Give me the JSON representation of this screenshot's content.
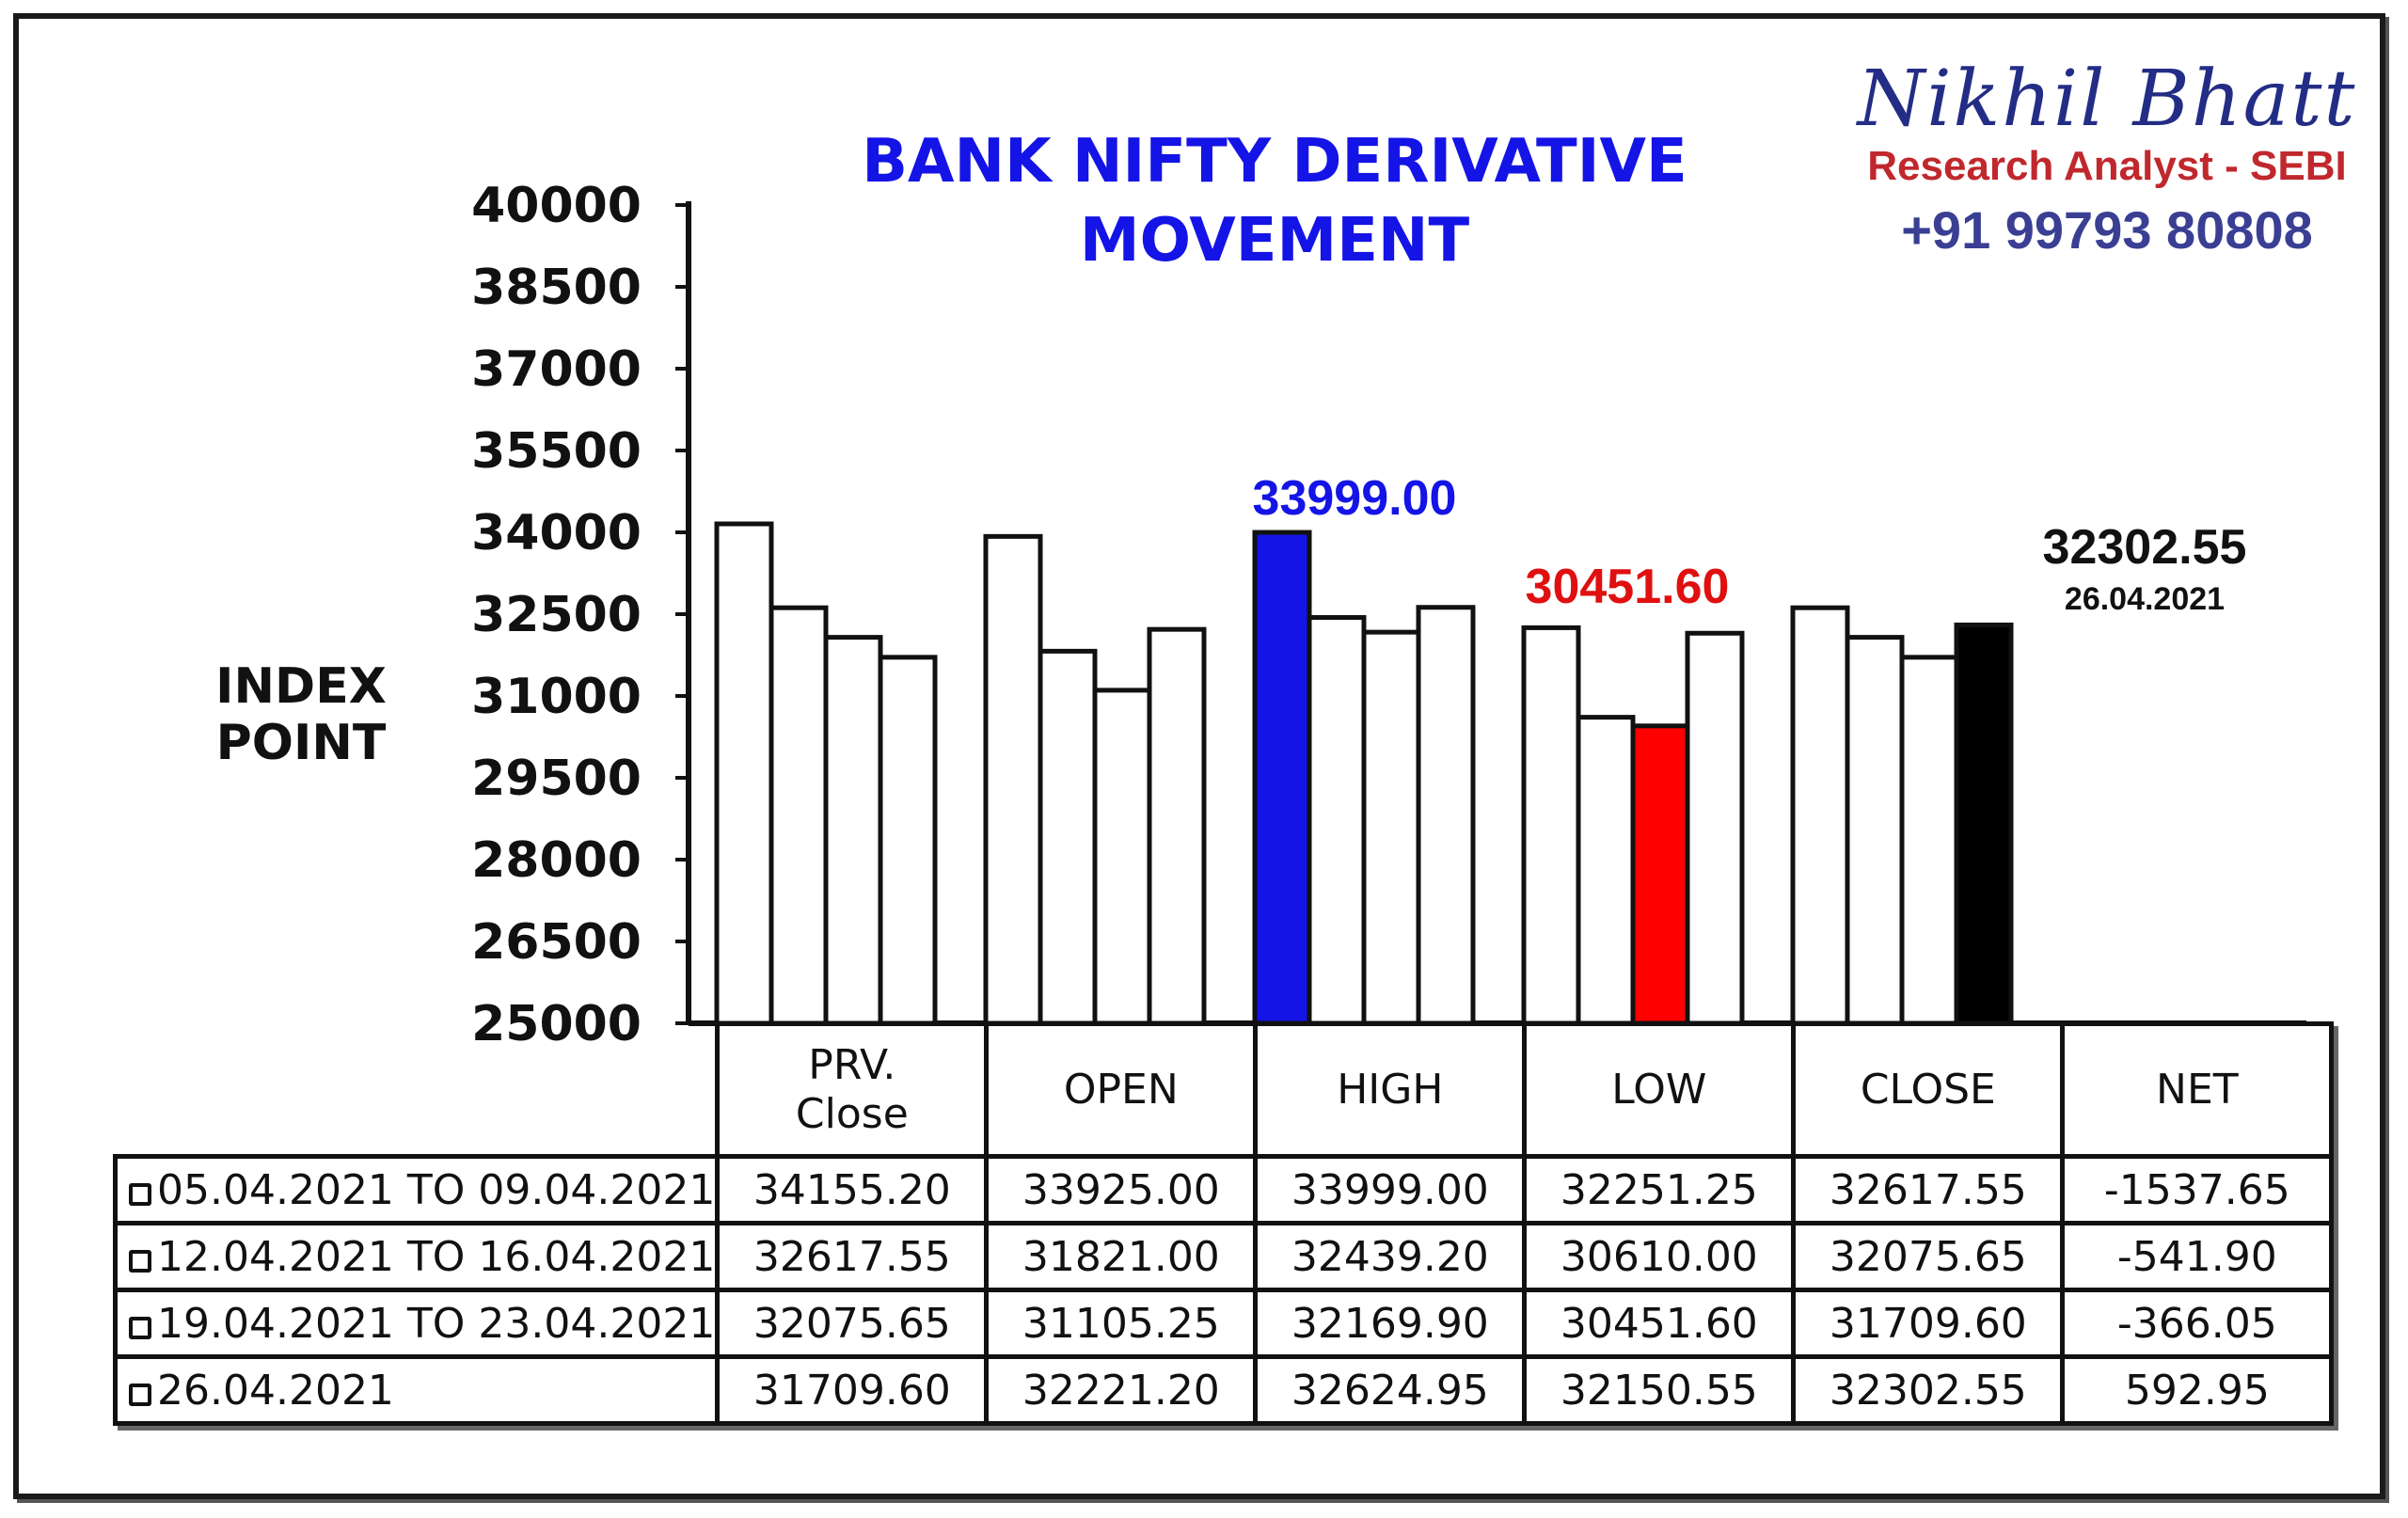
{
  "title_line1": "BANK NIFTY DERIVATIVE",
  "title_line2": "MOVEMENT",
  "brand": {
    "name": "Nikhil Bhatt",
    "role": "Research Analyst - SEBI",
    "phone": "+91 99793 80808"
  },
  "annotations": {
    "high": "33999.00",
    "low": "30451.60",
    "close": "32302.55",
    "close_date": "26.04.2021"
  },
  "colors": {
    "title": "#1414e6",
    "high_bar": "#1414e6",
    "low_bar": "#ff0000",
    "close_bar": "#000000",
    "default_bar": "#ffffff"
  },
  "chart_data": {
    "type": "bar",
    "title": "BANK NIFTY DERIVATIVE MOVEMENT",
    "ylabel": "INDEX POINT",
    "xlabel": "",
    "ylim": [
      25000,
      40000
    ],
    "yticks": [
      25000,
      26500,
      28000,
      29500,
      31000,
      32500,
      34000,
      35500,
      37000,
      38500,
      40000
    ],
    "categories": [
      "PRV. Close",
      "OPEN",
      "HIGH",
      "LOW",
      "CLOSE"
    ],
    "series": [
      {
        "name": "05.04.2021 TO 09.04.2021",
        "values": [
          34155.2,
          33925.0,
          33999.0,
          32251.25,
          32617.55
        ]
      },
      {
        "name": "12.04.2021 TO 16.04.2021",
        "values": [
          32617.55,
          31821.0,
          32439.2,
          30610.0,
          32075.65
        ]
      },
      {
        "name": "19.04.2021 TO 23.04.2021",
        "values": [
          32075.65,
          31105.25,
          32169.9,
          30451.6,
          31709.6
        ]
      },
      {
        "name": "26.04.2021",
        "values": [
          31709.6,
          32221.2,
          32624.95,
          32150.55,
          32302.55
        ]
      }
    ],
    "highlights": [
      {
        "category": "HIGH",
        "series": "05.04.2021 TO 09.04.2021",
        "color": "#1414e6"
      },
      {
        "category": "LOW",
        "series": "19.04.2021 TO 23.04.2021",
        "color": "#ff0000"
      },
      {
        "category": "CLOSE",
        "series": "26.04.2021",
        "color": "#000000"
      }
    ],
    "grid": false,
    "legend": "table-below"
  },
  "table": {
    "headers": [
      "PRV.\nClose",
      "OPEN",
      "HIGH",
      "LOW",
      "CLOSE",
      "NET"
    ],
    "rows": [
      {
        "label": "05.04.2021 TO 09.04.2021",
        "cells": [
          "34155.20",
          "33925.00",
          "33999.00",
          "32251.25",
          "32617.55",
          "-1537.65"
        ]
      },
      {
        "label": "12.04.2021 TO 16.04.2021",
        "cells": [
          "32617.55",
          "31821.00",
          "32439.20",
          "30610.00",
          "32075.65",
          "-541.90"
        ]
      },
      {
        "label": "19.04.2021 TO 23.04.2021",
        "cells": [
          "32075.65",
          "31105.25",
          "32169.90",
          "30451.60",
          "31709.60",
          "-366.05"
        ]
      },
      {
        "label": "26.04.2021",
        "cells": [
          "31709.60",
          "32221.20",
          "32624.95",
          "32150.55",
          "32302.55",
          "592.95"
        ]
      }
    ]
  }
}
